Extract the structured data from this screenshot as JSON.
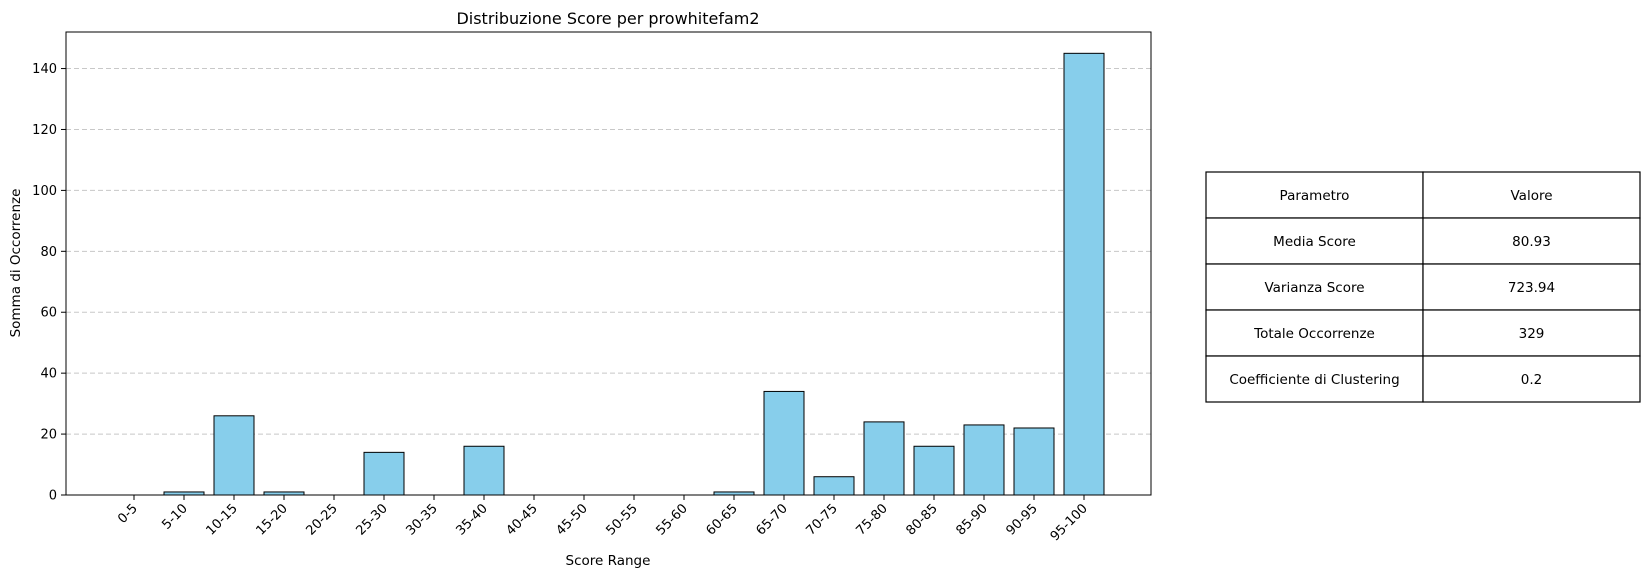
{
  "chart_data": {
    "type": "bar",
    "title": "Distribuzione Score per prowhitefam2",
    "xlabel": "Score Range",
    "ylabel": "Somma di Occorrenze",
    "categories": [
      "0-5",
      "5-10",
      "10-15",
      "15-20",
      "20-25",
      "25-30",
      "30-35",
      "35-40",
      "40-45",
      "45-50",
      "50-55",
      "55-60",
      "60-65",
      "65-70",
      "70-75",
      "75-80",
      "80-85",
      "85-90",
      "90-95",
      "95-100"
    ],
    "values": [
      0,
      1,
      26,
      1,
      0,
      14,
      0,
      16,
      0,
      0,
      0,
      0,
      1,
      34,
      6,
      24,
      16,
      23,
      22,
      145
    ],
    "ylim": [
      0,
      152
    ],
    "yticks": [
      0,
      20,
      40,
      60,
      80,
      100,
      120,
      140
    ],
    "grid": "y-dashed",
    "bar_color": "#87ceeb",
    "bar_edge_color": "#000000",
    "grid_color": "#c8c8c8"
  },
  "table": {
    "header": [
      "Parametro",
      "Valore"
    ],
    "rows": [
      [
        "Media Score",
        "80.93"
      ],
      [
        "Varianza Score",
        "723.94"
      ],
      [
        "Totale Occorrenze",
        "329"
      ],
      [
        "Coefficiente di Clustering",
        "0.2"
      ]
    ]
  }
}
